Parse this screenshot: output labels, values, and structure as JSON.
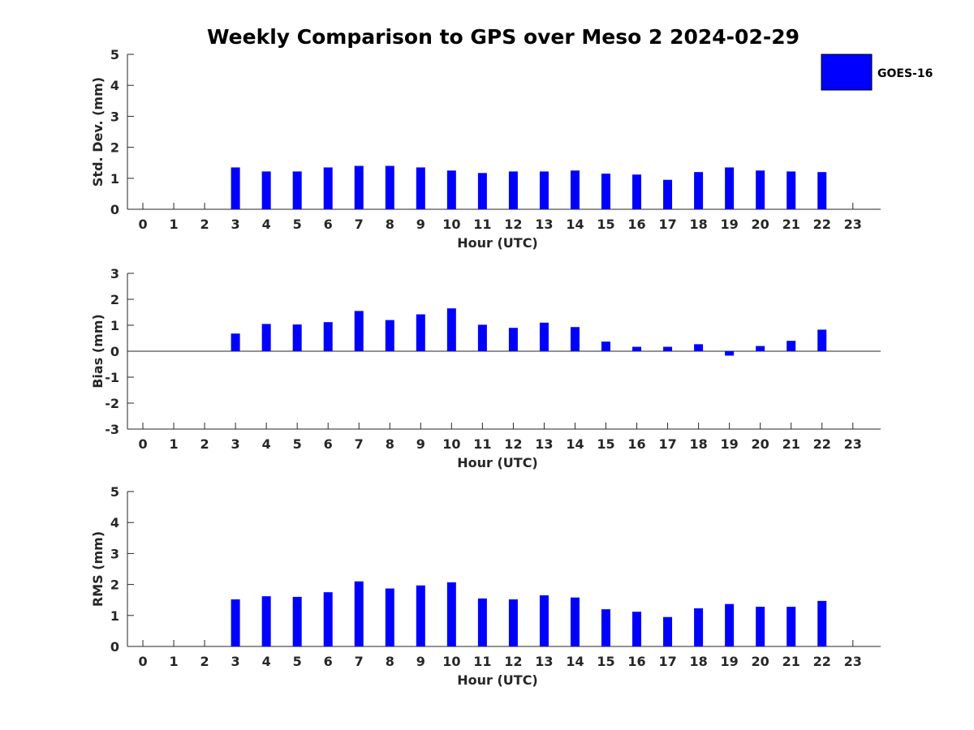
{
  "title": "Weekly Comparison to GPS over Meso 2 2024-02-29",
  "legend": {
    "label": "GOES-16",
    "color": "#0000ff",
    "placement": "top-right"
  },
  "chart_data": [
    {
      "type": "bar",
      "x": [
        3,
        4,
        5,
        6,
        7,
        8,
        9,
        10,
        11,
        12,
        13,
        14,
        15,
        16,
        17,
        18,
        19,
        20,
        21,
        22
      ],
      "values": [
        1.35,
        1.22,
        1.22,
        1.35,
        1.4,
        1.4,
        1.35,
        1.25,
        1.17,
        1.22,
        1.22,
        1.25,
        1.15,
        1.12,
        0.95,
        1.2,
        1.35,
        1.25,
        1.22,
        1.2
      ],
      "xticks": [
        "0",
        "1",
        "2",
        "3",
        "4",
        "5",
        "6",
        "7",
        "8",
        "9",
        "10",
        "11",
        "12",
        "13",
        "14",
        "15",
        "16",
        "17",
        "18",
        "19",
        "20",
        "21",
        "22",
        "23"
      ],
      "yticks": [
        "0",
        "1",
        "2",
        "3",
        "4",
        "5"
      ],
      "xlabel": "Hour (UTC)",
      "ylabel": "Std. Dev. (mm)",
      "xlim": [
        -0.5,
        23.9
      ],
      "ylim": [
        0,
        5
      ],
      "grid": false,
      "series": [
        {
          "name": "GOES-16",
          "color": "#0000ff"
        }
      ]
    },
    {
      "type": "bar",
      "x": [
        3,
        4,
        5,
        6,
        7,
        8,
        9,
        10,
        11,
        12,
        13,
        14,
        15,
        16,
        17,
        18,
        19,
        20,
        21,
        22
      ],
      "values": [
        0.68,
        1.05,
        1.03,
        1.12,
        1.55,
        1.2,
        1.42,
        1.65,
        1.02,
        0.9,
        1.1,
        0.93,
        0.37,
        0.17,
        0.17,
        0.27,
        -0.17,
        0.2,
        0.4,
        0.83
      ],
      "xticks": [
        "0",
        "1",
        "2",
        "3",
        "4",
        "5",
        "6",
        "7",
        "8",
        "9",
        "10",
        "11",
        "12",
        "13",
        "14",
        "15",
        "16",
        "17",
        "18",
        "19",
        "20",
        "21",
        "22",
        "23"
      ],
      "yticks": [
        "-3",
        "-2",
        "-1",
        "0",
        "1",
        "2",
        "3"
      ],
      "xlabel": "Hour (UTC)",
      "ylabel": "Bias (mm)",
      "xlim": [
        -0.5,
        23.9
      ],
      "ylim": [
        -3,
        3
      ],
      "grid": false,
      "zero_line": true,
      "series": [
        {
          "name": "GOES-16",
          "color": "#0000ff"
        }
      ]
    },
    {
      "type": "bar",
      "x": [
        3,
        4,
        5,
        6,
        7,
        8,
        9,
        10,
        11,
        12,
        13,
        14,
        15,
        16,
        17,
        18,
        19,
        20,
        21,
        22
      ],
      "values": [
        1.52,
        1.62,
        1.6,
        1.75,
        2.1,
        1.87,
        1.97,
        2.07,
        1.55,
        1.52,
        1.65,
        1.58,
        1.2,
        1.12,
        0.95,
        1.23,
        1.37,
        1.28,
        1.28,
        1.47
      ],
      "xticks": [
        "0",
        "1",
        "2",
        "3",
        "4",
        "5",
        "6",
        "7",
        "8",
        "9",
        "10",
        "11",
        "12",
        "13",
        "14",
        "15",
        "16",
        "17",
        "18",
        "19",
        "20",
        "21",
        "22",
        "23"
      ],
      "yticks": [
        "0",
        "1",
        "2",
        "3",
        "4",
        "5"
      ],
      "xlabel": "Hour (UTC)",
      "ylabel": "RMS (mm)",
      "xlim": [
        -0.5,
        23.9
      ],
      "ylim": [
        0,
        5
      ],
      "grid": false,
      "series": [
        {
          "name": "GOES-16",
          "color": "#0000ff"
        }
      ]
    }
  ]
}
